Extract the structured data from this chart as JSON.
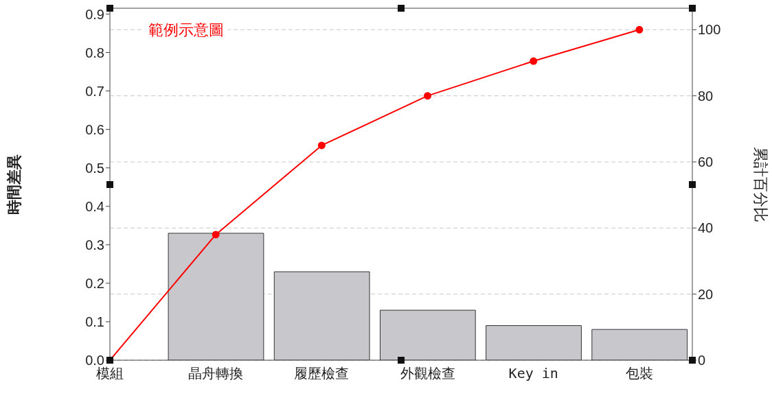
{
  "chart_data": {
    "type": "bar",
    "categories": [
      "模組",
      "晶舟轉換",
      "履歷檢查",
      "外觀檢查",
      "Key in",
      "包裝"
    ],
    "series": [
      {
        "color": "#c8c7cc",
        "values": [
          null,
          0.33,
          0.23,
          0.13,
          0.09,
          0.08
        ]
      },
      {
        "type": "line",
        "color": "#ff0000",
        "axis": "y2",
        "marker": "circle",
        "values": [
          0,
          38,
          65,
          80,
          90.5,
          100
        ]
      }
    ],
    "ylabel": "時間差異",
    "y2label": "累計百分比",
    "annotations": [
      "範例示意圖"
    ],
    "ylim": [
      0,
      0.915
    ],
    "yticks": [
      {
        "value": 0,
        "label": "0.0"
      },
      {
        "value": 0.1,
        "label": "0.1"
      },
      {
        "value": 0.2,
        "label": "0.2"
      },
      {
        "value": 0.3,
        "label": "0.3"
      },
      {
        "value": 0.4,
        "label": "0.4"
      },
      {
        "value": 0.5,
        "label": "0.5"
      },
      {
        "value": 0.6,
        "label": "0.6"
      },
      {
        "value": 0.7,
        "label": "0.7"
      },
      {
        "value": 0.8,
        "label": "0.8"
      },
      {
        "value": 0.9,
        "label": "0.9"
      }
    ],
    "y2lim": [
      0,
      106.5
    ],
    "y2ticks": [
      0,
      20,
      40,
      60,
      80,
      100
    ],
    "grid": "y"
  }
}
